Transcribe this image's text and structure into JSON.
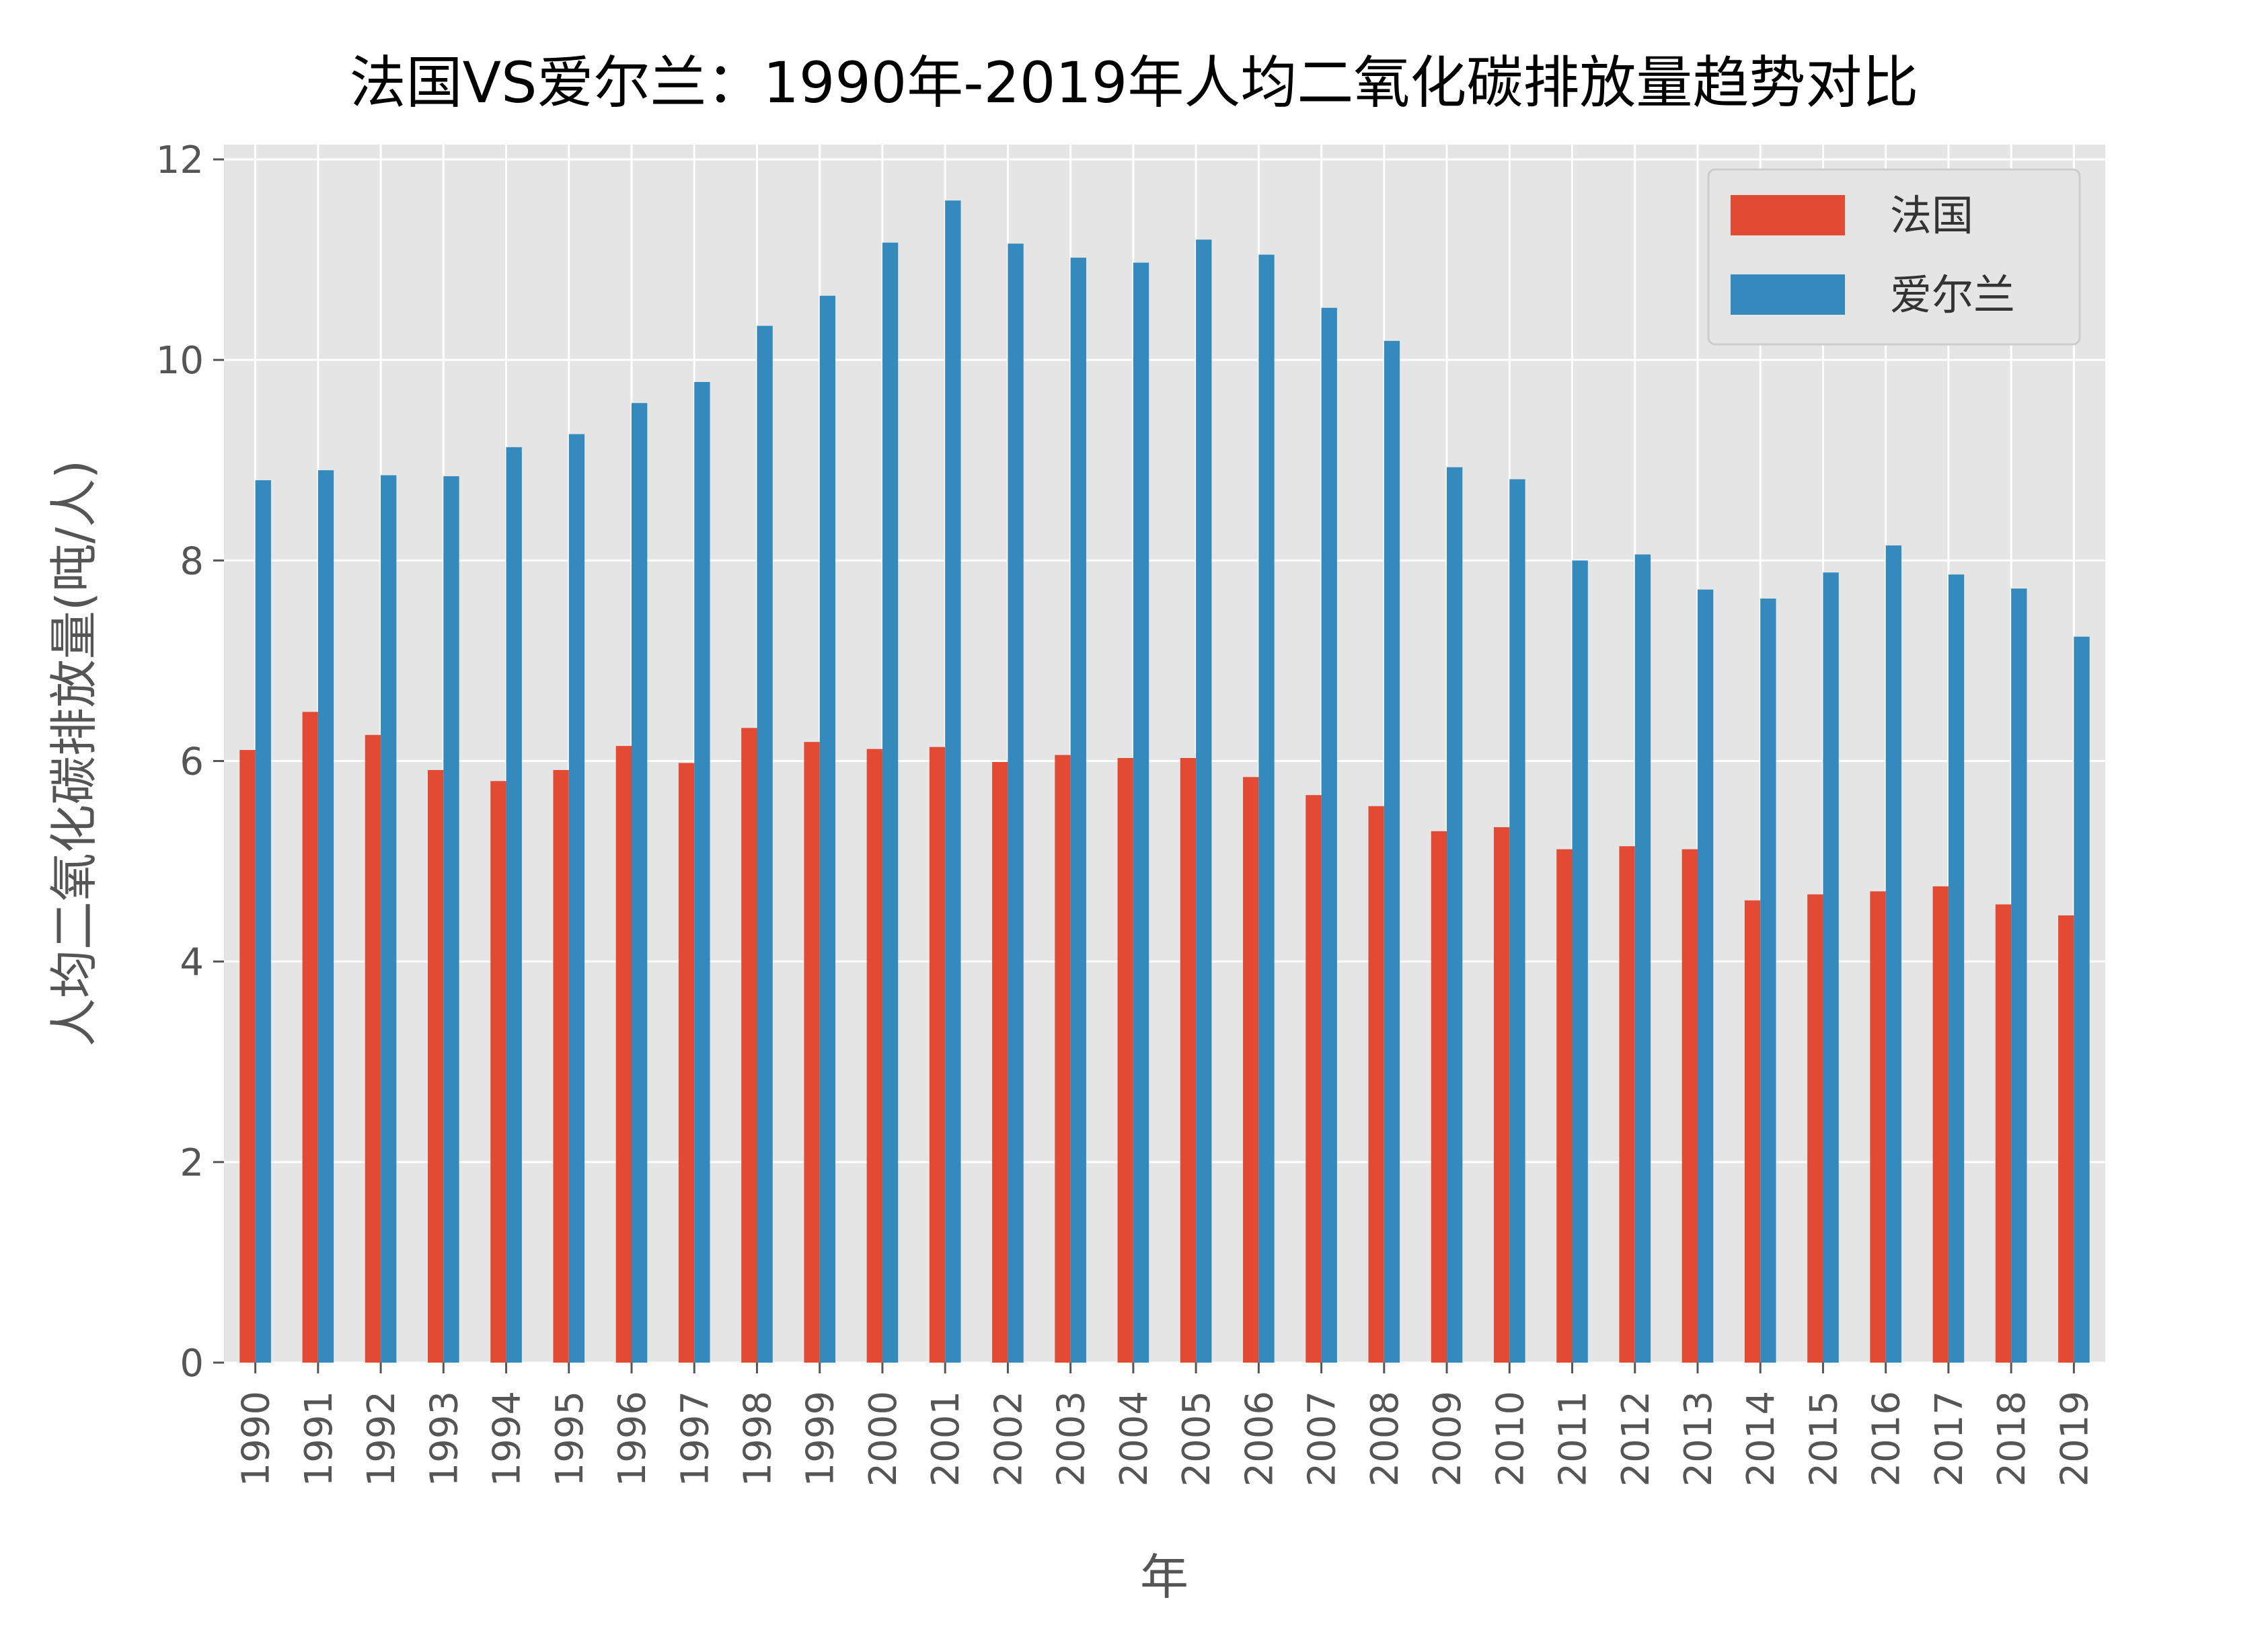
{
  "chart_data": {
    "type": "bar",
    "title": "法国VS爱尔兰：1990年-2019年人均二氧化碳排放量趋势对比",
    "xlabel": "年",
    "ylabel": "人均二氧化碳排放量(吨/人)",
    "ylim": [
      0,
      12
    ],
    "yticks": [
      0,
      2,
      4,
      6,
      8,
      10,
      12
    ],
    "grid": true,
    "legend_position": "top-right",
    "categories": [
      "1990",
      "1991",
      "1992",
      "1993",
      "1994",
      "1995",
      "1996",
      "1997",
      "1998",
      "1999",
      "2000",
      "2001",
      "2002",
      "2003",
      "2004",
      "2005",
      "2006",
      "2007",
      "2008",
      "2009",
      "2010",
      "2011",
      "2012",
      "2013",
      "2014",
      "2015",
      "2016",
      "2017",
      "2018",
      "2019"
    ],
    "series": [
      {
        "name": "法国",
        "color": "#E24A33",
        "values": [
          6.11,
          6.49,
          6.26,
          5.91,
          5.8,
          5.91,
          6.15,
          5.98,
          6.33,
          6.19,
          6.12,
          6.14,
          5.99,
          6.06,
          6.03,
          6.03,
          5.84,
          5.66,
          5.55,
          5.3,
          5.34,
          5.12,
          5.15,
          5.12,
          4.61,
          4.67,
          4.7,
          4.75,
          4.57,
          4.46
        ]
      },
      {
        "name": "爱尔兰",
        "color": "#348ABD",
        "values": [
          8.8,
          8.9,
          8.85,
          8.84,
          9.13,
          9.26,
          9.57,
          9.78,
          10.34,
          10.64,
          11.17,
          11.59,
          11.16,
          11.02,
          10.97,
          11.2,
          11.05,
          10.52,
          10.19,
          8.93,
          8.81,
          8.0,
          8.06,
          7.71,
          7.62,
          7.88,
          8.15,
          7.86,
          7.72,
          7.24
        ]
      }
    ]
  }
}
